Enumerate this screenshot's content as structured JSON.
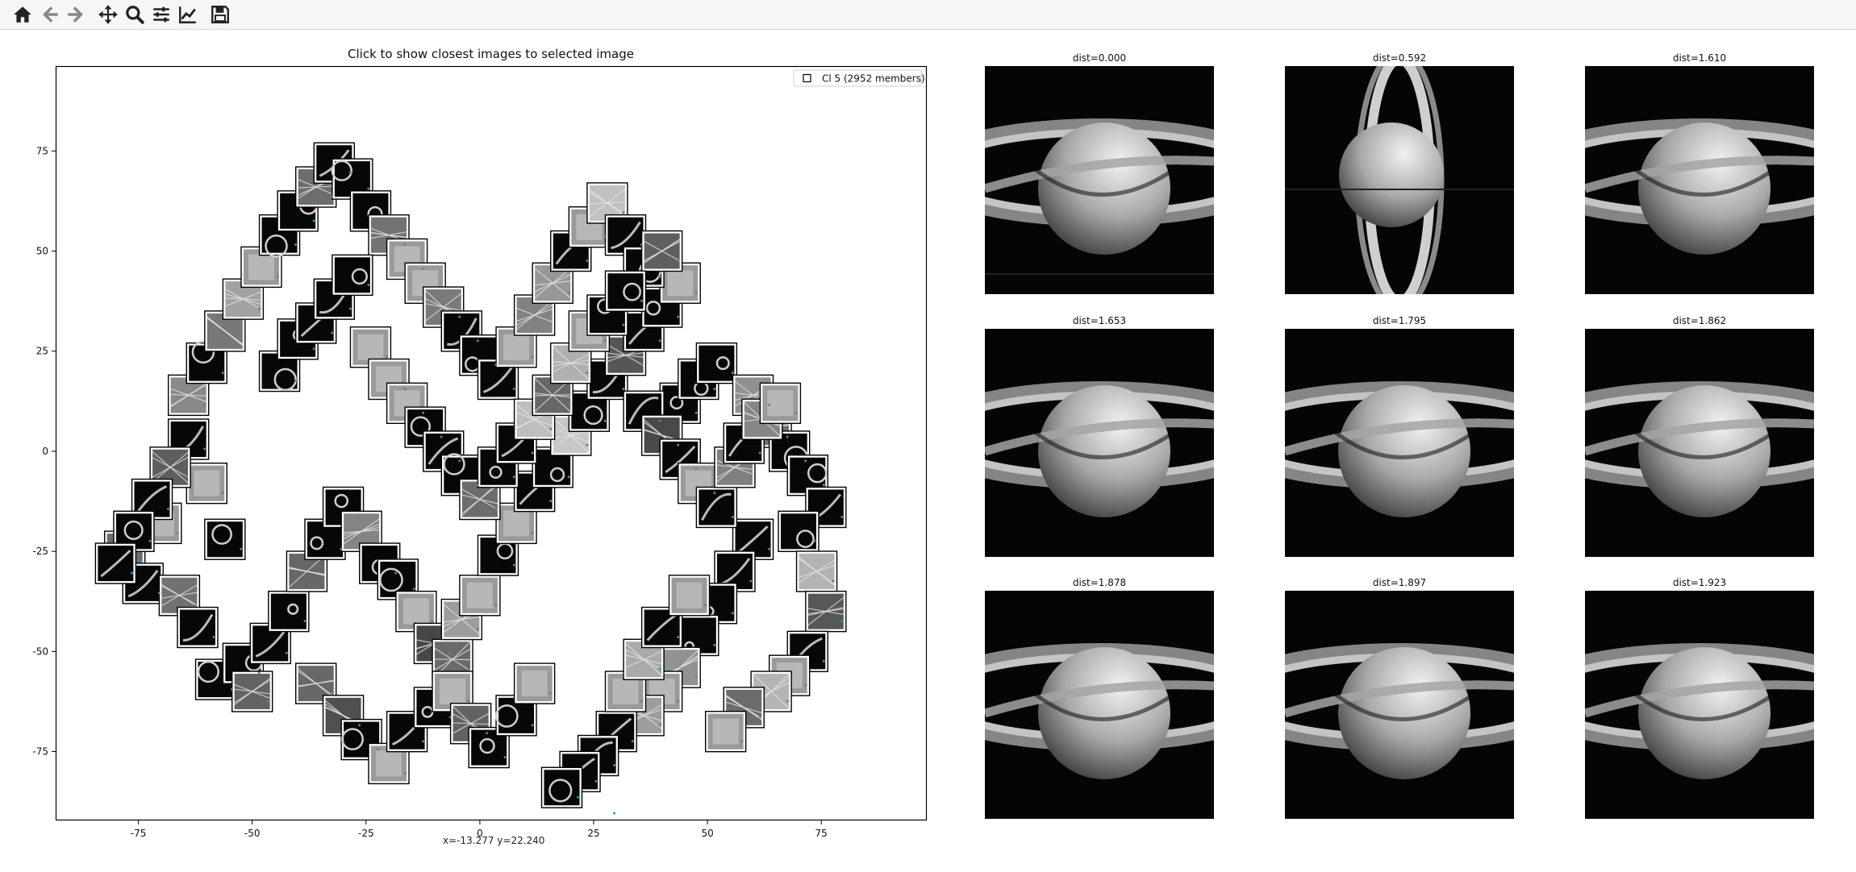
{
  "toolbar": {
    "buttons": [
      {
        "name": "home-button",
        "icon": "home-icon"
      },
      {
        "name": "back-button",
        "icon": "arrow-left-icon"
      },
      {
        "name": "forward-button",
        "icon": "arrow-right-icon"
      },
      {
        "name": "pan-button",
        "icon": "move-icon"
      },
      {
        "name": "zoom-button",
        "icon": "zoom-icon"
      },
      {
        "name": "subplots-button",
        "icon": "sliders-icon"
      },
      {
        "name": "edit-axis-button",
        "icon": "chart-line-icon"
      },
      {
        "name": "save-button",
        "icon": "floppy-disk-icon"
      }
    ]
  },
  "main_plot": {
    "title": "Click to show closest images to selected image",
    "legend_label": "Cl 5 (2952 members)",
    "status": "x=-13.277 y=22.240"
  },
  "chart_data": {
    "type": "scatter",
    "title": "Click to show closest images to selected image",
    "xlim": [
      -93,
      98
    ],
    "ylim": [
      -92,
      96
    ],
    "x_ticks": [
      "-75",
      "-50",
      "-25",
      "0",
      "25",
      "50",
      "75"
    ],
    "y_ticks": [
      "75",
      "50",
      "25",
      "0",
      "-25",
      "-50",
      "-75"
    ],
    "grid": false,
    "legend_position": "top-right",
    "series": [
      {
        "name": "Cl 5 (2952 members)",
        "points": [
          [
            -78,
            -25
          ],
          [
            -74,
            -33
          ],
          [
            -70,
            -18
          ],
          [
            -66,
            -36
          ],
          [
            -64,
            3
          ],
          [
            -60,
            -8
          ],
          [
            -56,
            -22
          ],
          [
            -62,
            -44
          ],
          [
            -58,
            -57
          ],
          [
            -52,
            -53
          ],
          [
            -50,
            -60
          ],
          [
            -46,
            -48
          ],
          [
            -42,
            -40
          ],
          [
            -38,
            -30
          ],
          [
            -34,
            -22
          ],
          [
            -30,
            -14
          ],
          [
            -26,
            -20
          ],
          [
            -22,
            -28
          ],
          [
            -18,
            -32
          ],
          [
            -14,
            -40
          ],
          [
            -10,
            -48
          ],
          [
            -6,
            -52
          ],
          [
            -4,
            -42
          ],
          [
            0,
            -36
          ],
          [
            4,
            -26
          ],
          [
            8,
            -18
          ],
          [
            12,
            -10
          ],
          [
            16,
            -4
          ],
          [
            20,
            4
          ],
          [
            24,
            10
          ],
          [
            28,
            18
          ],
          [
            32,
            24
          ],
          [
            36,
            30
          ],
          [
            40,
            36
          ],
          [
            44,
            42
          ],
          [
            -64,
            14
          ],
          [
            -60,
            22
          ],
          [
            -56,
            30
          ],
          [
            -52,
            38
          ],
          [
            -48,
            46
          ],
          [
            -44,
            54
          ],
          [
            -40,
            60
          ],
          [
            -36,
            66
          ],
          [
            -32,
            72
          ],
          [
            -28,
            68
          ],
          [
            -24,
            60
          ],
          [
            -20,
            54
          ],
          [
            -16,
            48
          ],
          [
            -12,
            42
          ],
          [
            -8,
            36
          ],
          [
            -4,
            30
          ],
          [
            0,
            24
          ],
          [
            4,
            18
          ],
          [
            8,
            26
          ],
          [
            12,
            34
          ],
          [
            16,
            42
          ],
          [
            20,
            50
          ],
          [
            24,
            56
          ],
          [
            28,
            62
          ],
          [
            32,
            54
          ],
          [
            36,
            46
          ],
          [
            40,
            50
          ],
          [
            44,
            12
          ],
          [
            48,
            18
          ],
          [
            52,
            22
          ],
          [
            60,
            14
          ],
          [
            64,
            6
          ],
          [
            68,
            0
          ],
          [
            72,
            -6
          ],
          [
            76,
            -14
          ],
          [
            60,
            -22
          ],
          [
            56,
            -30
          ],
          [
            52,
            -38
          ],
          [
            48,
            -46
          ],
          [
            44,
            -54
          ],
          [
            40,
            -60
          ],
          [
            36,
            -66
          ],
          [
            30,
            -70
          ],
          [
            26,
            -76
          ],
          [
            22,
            -80
          ],
          [
            18,
            -84
          ],
          [
            26,
            -88
          ],
          [
            32,
            -60
          ],
          [
            36,
            -52
          ],
          [
            40,
            -44
          ],
          [
            46,
            -36
          ],
          [
            -36,
            -58
          ],
          [
            -30,
            -66
          ],
          [
            -26,
            -72
          ],
          [
            -20,
            -78
          ],
          [
            -16,
            -70
          ],
          [
            -10,
            -64
          ],
          [
            -6,
            -60
          ],
          [
            -2,
            -68
          ],
          [
            2,
            -74
          ],
          [
            8,
            -66
          ],
          [
            12,
            -58
          ],
          [
            -68,
            -4
          ],
          [
            -72,
            -12
          ],
          [
            -76,
            -20
          ],
          [
            -80,
            -28
          ],
          [
            -44,
            20
          ],
          [
            -40,
            28
          ],
          [
            -36,
            32
          ],
          [
            -32,
            38
          ],
          [
            -28,
            44
          ],
          [
            -24,
            26
          ],
          [
            -20,
            18
          ],
          [
            -16,
            12
          ],
          [
            -12,
            6
          ],
          [
            -8,
            0
          ],
          [
            -4,
            -6
          ],
          [
            0,
            -12
          ],
          [
            4,
            -4
          ],
          [
            8,
            2
          ],
          [
            12,
            8
          ],
          [
            16,
            14
          ],
          [
            20,
            22
          ],
          [
            24,
            30
          ],
          [
            28,
            34
          ],
          [
            32,
            40
          ],
          [
            36,
            10
          ],
          [
            40,
            4
          ],
          [
            44,
            -2
          ],
          [
            48,
            -8
          ],
          [
            52,
            -14
          ],
          [
            56,
            -4
          ],
          [
            58,
            2
          ],
          [
            62,
            8
          ],
          [
            66,
            12
          ],
          [
            70,
            -20
          ],
          [
            74,
            -30
          ],
          [
            76,
            -40
          ],
          [
            72,
            -50
          ],
          [
            68,
            -56
          ],
          [
            64,
            -60
          ],
          [
            58,
            -64
          ],
          [
            54,
            -70
          ]
        ]
      }
    ]
  },
  "nn_panels": [
    {
      "label": "dist=0.000"
    },
    {
      "label": "dist=0.592"
    },
    {
      "label": "dist=1.610"
    },
    {
      "label": "dist=1.653"
    },
    {
      "label": "dist=1.795"
    },
    {
      "label": "dist=1.862"
    },
    {
      "label": "dist=1.878"
    },
    {
      "label": "dist=1.897"
    },
    {
      "label": "dist=1.923"
    }
  ]
}
